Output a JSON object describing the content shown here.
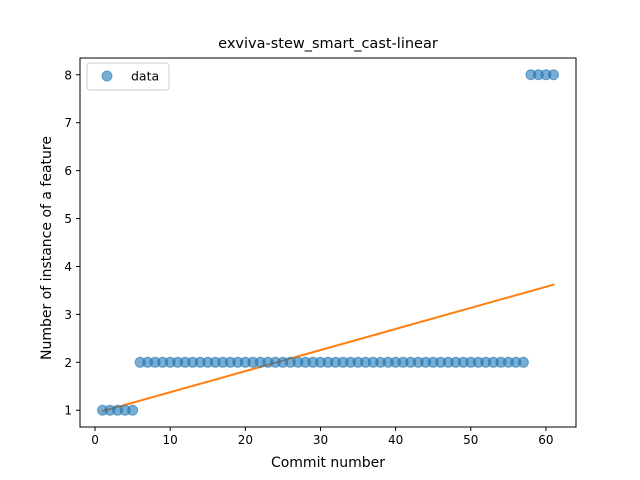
{
  "chart_data": {
    "type": "scatter",
    "title": "exviva-stew_smart_cast-linear",
    "xlabel": "Commit number",
    "ylabel": "Number of instance of a feature",
    "xlim": [
      -2,
      64
    ],
    "ylim": [
      0.65,
      8.35
    ],
    "xticks": [
      0,
      10,
      20,
      30,
      40,
      50,
      60
    ],
    "yticks": [
      1,
      2,
      3,
      4,
      5,
      6,
      7,
      8
    ],
    "grid": false,
    "legend": {
      "placement": "top-left",
      "entries": [
        "data"
      ]
    },
    "colors": {
      "points": "#1f77b4",
      "fit": "#ff7f0e"
    },
    "series": [
      {
        "name": "data",
        "kind": "scatter",
        "x": [
          1,
          2,
          3,
          4,
          5,
          6,
          7,
          8,
          9,
          10,
          11,
          12,
          13,
          14,
          15,
          16,
          17,
          18,
          19,
          20,
          21,
          22,
          23,
          24,
          25,
          26,
          27,
          28,
          29,
          30,
          31,
          32,
          33,
          34,
          35,
          36,
          37,
          38,
          39,
          40,
          41,
          42,
          43,
          44,
          45,
          46,
          47,
          48,
          49,
          50,
          51,
          52,
          53,
          54,
          55,
          56,
          57,
          58,
          59,
          60,
          61
        ],
        "y": [
          1,
          1,
          1,
          1,
          1,
          2,
          2,
          2,
          2,
          2,
          2,
          2,
          2,
          2,
          2,
          2,
          2,
          2,
          2,
          2,
          2,
          2,
          2,
          2,
          2,
          2,
          2,
          2,
          2,
          2,
          2,
          2,
          2,
          2,
          2,
          2,
          2,
          2,
          2,
          2,
          2,
          2,
          2,
          2,
          2,
          2,
          2,
          2,
          2,
          2,
          2,
          2,
          2,
          2,
          2,
          2,
          2,
          8,
          8,
          8,
          8
        ]
      },
      {
        "kind": "line",
        "x": [
          1,
          61
        ],
        "y": [
          0.98,
          3.62
        ]
      }
    ]
  }
}
